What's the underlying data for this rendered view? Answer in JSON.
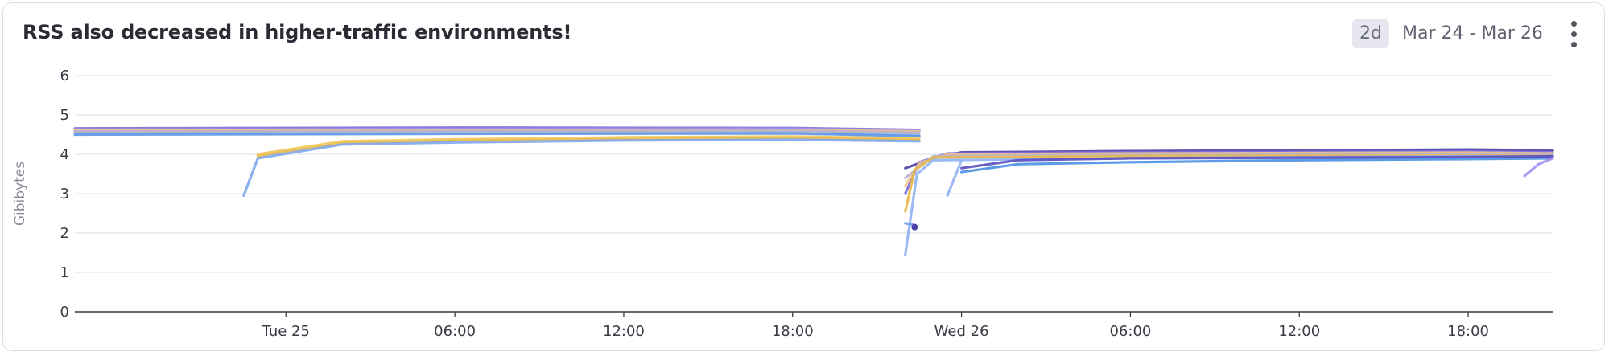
{
  "widget": {
    "title": "RSS also decreased in higher-traffic environments!",
    "range_badge": "2d",
    "range_text": "Mar 24 - Mar 26",
    "menu_icon": "more-vertical-icon"
  },
  "colors": {
    "grid": "#e4e5ea",
    "axis": "#3a3b45",
    "tick_text": "#3a3b45",
    "ylabel": "#8b8d98"
  },
  "chart_data": {
    "type": "line",
    "title": "RSS also decreased in higher-traffic environments!",
    "xlabel": "",
    "ylabel": "Gibibytes",
    "ylim": [
      0,
      6
    ],
    "yticks": [
      0,
      1,
      2,
      3,
      4,
      5,
      6
    ],
    "xlim": [
      "2025-03-24 16:30",
      "2025-03-26 21:00"
    ],
    "xticks": [
      {
        "t": "2025-03-25 00:00",
        "label": "Tue 25"
      },
      {
        "t": "2025-03-25 06:00",
        "label": "06:00"
      },
      {
        "t": "2025-03-25 12:00",
        "label": "12:00"
      },
      {
        "t": "2025-03-25 18:00",
        "label": "18:00"
      },
      {
        "t": "2025-03-26 00:00",
        "label": "Wed 26"
      },
      {
        "t": "2025-03-26 06:00",
        "label": "06:00"
      },
      {
        "t": "2025-03-26 12:00",
        "label": "12:00"
      },
      {
        "t": "2025-03-26 18:00",
        "label": "18:00"
      }
    ],
    "grid": true,
    "legend": "none",
    "series": [
      {
        "color": "#7b6fdc",
        "points": [
          [
            "2025-03-24 16:30",
            4.66
          ],
          [
            "2025-03-25 06:00",
            4.68
          ],
          [
            "2025-03-25 18:00",
            4.67
          ],
          [
            "2025-03-25 22:30",
            4.62
          ]
        ]
      },
      {
        "color": "#a88fe6",
        "points": [
          [
            "2025-03-24 16:30",
            4.63
          ],
          [
            "2025-03-25 06:00",
            4.64
          ],
          [
            "2025-03-25 18:00",
            4.65
          ],
          [
            "2025-03-25 22:30",
            4.6
          ]
        ]
      },
      {
        "color": "#f2c38a",
        "points": [
          [
            "2025-03-24 16:30",
            4.61
          ],
          [
            "2025-03-25 06:00",
            4.62
          ],
          [
            "2025-03-25 18:00",
            4.62
          ],
          [
            "2025-03-25 22:30",
            4.58
          ]
        ]
      },
      {
        "color": "#8fb3f2",
        "points": [
          [
            "2025-03-24 16:30",
            4.55
          ],
          [
            "2025-03-25 06:00",
            4.56
          ],
          [
            "2025-03-25 18:00",
            4.57
          ],
          [
            "2025-03-25 22:30",
            4.5
          ]
        ]
      },
      {
        "color": "#5a95e8",
        "points": [
          [
            "2025-03-24 16:30",
            4.5
          ],
          [
            "2025-03-25 06:00",
            4.52
          ],
          [
            "2025-03-25 18:00",
            4.53
          ],
          [
            "2025-03-25 22:30",
            4.46
          ]
        ]
      },
      {
        "color": "#b8b3c8",
        "points": [
          [
            "2025-03-24 16:30",
            4.58
          ],
          [
            "2025-03-25 06:00",
            4.59
          ],
          [
            "2025-03-25 18:00",
            4.6
          ],
          [
            "2025-03-25 22:30",
            4.55
          ]
        ]
      },
      {
        "color": "#f0c75a",
        "points": [
          [
            "2025-03-24 23:00",
            4.0
          ],
          [
            "2025-03-25 02:00",
            4.33
          ],
          [
            "2025-03-25 06:00",
            4.38
          ],
          [
            "2025-03-25 12:00",
            4.43
          ],
          [
            "2025-03-25 18:00",
            4.45
          ],
          [
            "2025-03-25 22:30",
            4.4
          ]
        ]
      },
      {
        "color": "#e7b84d",
        "points": [
          [
            "2025-03-24 23:00",
            3.95
          ],
          [
            "2025-03-25 02:00",
            4.28
          ],
          [
            "2025-03-25 06:00",
            4.34
          ],
          [
            "2025-03-25 12:00",
            4.38
          ],
          [
            "2025-03-25 18:00",
            4.41
          ],
          [
            "2025-03-25 22:30",
            4.36
          ]
        ]
      },
      {
        "color": "#7fa8ee",
        "points": [
          [
            "2025-03-24 22:30",
            2.95
          ],
          [
            "2025-03-24 23:00",
            3.9
          ],
          [
            "2025-03-25 02:00",
            4.25
          ],
          [
            "2025-03-25 06:00",
            4.3
          ],
          [
            "2025-03-25 12:00",
            4.35
          ],
          [
            "2025-03-25 18:00",
            4.37
          ],
          [
            "2025-03-25 22:30",
            4.33
          ]
        ]
      },
      {
        "color": "#4b3fa8",
        "points": [
          [
            "2025-03-25 22:00",
            3.65
          ],
          [
            "2025-03-25 23:00",
            3.9
          ],
          [
            "2025-03-26 00:00",
            4.05
          ],
          [
            "2025-03-26 06:00",
            4.08
          ],
          [
            "2025-03-26 12:00",
            4.1
          ],
          [
            "2025-03-26 18:00",
            4.12
          ],
          [
            "2025-03-26 21:00",
            4.1
          ]
        ]
      },
      {
        "color": "#7b6fdc",
        "points": [
          [
            "2025-03-25 22:00",
            3.0
          ],
          [
            "2025-03-25 22:30",
            3.8
          ],
          [
            "2025-03-25 23:30",
            4.02
          ],
          [
            "2025-03-26 06:00",
            4.05
          ],
          [
            "2025-03-26 18:00",
            4.07
          ],
          [
            "2025-03-26 21:00",
            4.05
          ]
        ]
      },
      {
        "color": "#f2c38a",
        "points": [
          [
            "2025-03-25 22:00",
            3.2
          ],
          [
            "2025-03-25 22:30",
            3.78
          ],
          [
            "2025-03-25 23:30",
            4.0
          ],
          [
            "2025-03-26 06:00",
            4.02
          ],
          [
            "2025-03-26 18:00",
            4.04
          ],
          [
            "2025-03-26 21:00",
            4.02
          ]
        ]
      },
      {
        "color": "#b8b3c8",
        "points": [
          [
            "2025-03-25 22:00",
            3.4
          ],
          [
            "2025-03-25 23:00",
            3.95
          ],
          [
            "2025-03-26 06:00",
            3.98
          ],
          [
            "2025-03-26 18:00",
            4.0
          ],
          [
            "2025-03-26 21:00",
            3.98
          ]
        ]
      },
      {
        "color": "#e7b84d",
        "points": [
          [
            "2025-03-25 22:00",
            2.55
          ],
          [
            "2025-03-25 22:20",
            3.6
          ],
          [
            "2025-03-25 23:00",
            3.92
          ],
          [
            "2025-03-26 06:00",
            3.95
          ],
          [
            "2025-03-26 18:00",
            3.97
          ],
          [
            "2025-03-26 21:00",
            3.95
          ]
        ]
      },
      {
        "color": "#8fb3f2",
        "points": [
          [
            "2025-03-25 22:00",
            1.45
          ],
          [
            "2025-03-25 22:25",
            3.5
          ],
          [
            "2025-03-25 23:00",
            3.85
          ],
          [
            "2025-03-26 06:00",
            3.9
          ],
          [
            "2025-03-26 18:00",
            3.95
          ],
          [
            "2025-03-26 21:00",
            3.93
          ]
        ]
      },
      {
        "color": "#6f9fe9",
        "points": [
          [
            "2025-03-25 22:00",
            2.25
          ],
          [
            "2025-03-25 22:20",
            2.2
          ]
        ]
      },
      {
        "color": "#8fb3f2",
        "points": [
          [
            "2025-03-25 23:30",
            2.95
          ],
          [
            "2025-03-26 00:00",
            3.85
          ]
        ]
      },
      {
        "color": "#4a90e2",
        "points": [
          [
            "2025-03-26 00:00",
            3.55
          ],
          [
            "2025-03-26 02:00",
            3.75
          ],
          [
            "2025-03-26 06:00",
            3.8
          ],
          [
            "2025-03-26 12:00",
            3.85
          ],
          [
            "2025-03-26 18:00",
            3.88
          ],
          [
            "2025-03-26 21:00",
            3.9
          ]
        ]
      },
      {
        "color": "#5b4fc0",
        "points": [
          [
            "2025-03-26 00:00",
            3.65
          ],
          [
            "2025-03-26 02:00",
            3.85
          ],
          [
            "2025-03-26 06:00",
            3.9
          ],
          [
            "2025-03-26 18:00",
            3.93
          ],
          [
            "2025-03-26 21:00",
            3.95
          ]
        ]
      },
      {
        "color": "#a68ff0",
        "points": [
          [
            "2025-03-26 20:00",
            3.45
          ],
          [
            "2025-03-26 20:30",
            3.75
          ],
          [
            "2025-03-26 21:00",
            3.9
          ]
        ]
      }
    ],
    "markers": [
      {
        "t": "2025-03-25 22:20",
        "y": 2.15,
        "color": "#4b3fa8"
      }
    ]
  }
}
